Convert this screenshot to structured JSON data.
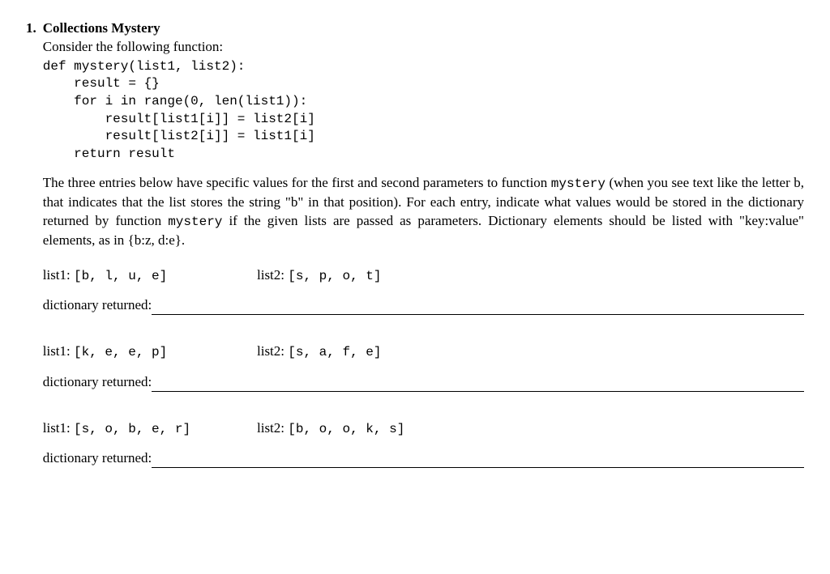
{
  "question": {
    "marker": "1.",
    "title": "Collections Mystery",
    "intro": "Consider the following function:",
    "code": "def mystery(list1, list2):\n    result = {}\n    for i in range(0, len(list1)):\n        result[list1[i]] = list2[i]\n        result[list2[i]] = list1[i]\n    return result",
    "paragraph_parts": {
      "p1": "The three entries below have specific values for the first and second parameters to function ",
      "m1": "mystery",
      "p2": " (when you see text like the letter b, that indicates that the list stores the string \"b\" in that position).  For each entry, indicate what values would be stored in the dictionary returned by function ",
      "m2": "mystery",
      "p3": " if the given lists are passed as parameters.  Dictionary elements should be listed with \"key:value\" elements, as in {b:z, d:e}."
    },
    "labels": {
      "list1": "list1: ",
      "list2": "list2: ",
      "returned": "dictionary returned:"
    },
    "entries": [
      {
        "list1": "[b, l, u, e]",
        "list2": "[s, p, o, t]"
      },
      {
        "list1": "[k, e, e, p]",
        "list2": "[s, a, f, e]"
      },
      {
        "list1": "[s, o, b, e, r]",
        "list2": "[b, o, o, k, s]"
      }
    ]
  }
}
